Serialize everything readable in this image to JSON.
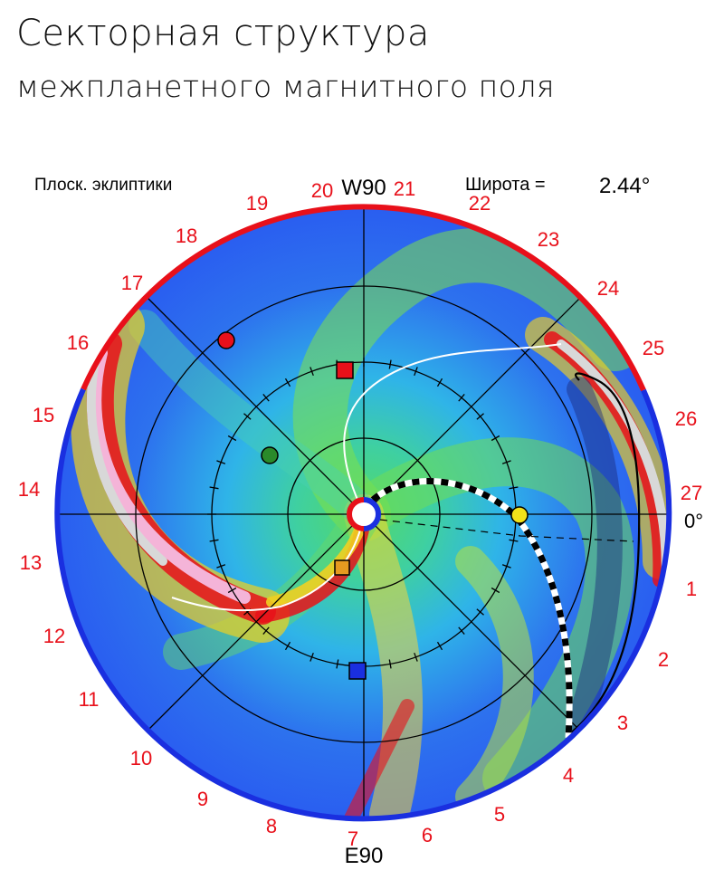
{
  "title": {
    "line1": "Секторная структура",
    "line2": "межпланетного магнитного поля"
  },
  "plot": {
    "ecliptic_label": "Плоск. эклиптики",
    "latitude_label": "Широта =",
    "latitude_value": "2.44°",
    "top_label": "W90",
    "bottom_label": "E90",
    "zero_label": "0°",
    "day_labels": [
      "1",
      "2",
      "3",
      "4",
      "5",
      "6",
      "7",
      "8",
      "9",
      "10",
      "11",
      "12",
      "13",
      "14",
      "15",
      "16",
      "17",
      "18",
      "19",
      "20",
      "21",
      "22",
      "23",
      "24",
      "25",
      "26",
      "27"
    ]
  },
  "colors": {
    "positive_sector": "#e8101a",
    "negative_sector": "#1a2fe0",
    "background_field": "#2a5ef0",
    "marker_red": "#e8101a",
    "marker_green": "#2a8a2a",
    "marker_yellow": "#f2e21a",
    "marker_orange": "#e59a20",
    "marker_blue": "#1a2fe0"
  },
  "markers": [
    {
      "name": "red-planet-marker",
      "shape": "circle",
      "color": "#e8101a"
    },
    {
      "name": "green-planet-marker",
      "shape": "circle",
      "color": "#2a8a2a"
    },
    {
      "name": "yellow-earth-marker",
      "shape": "circle",
      "color": "#f2e21a"
    },
    {
      "name": "red-spacecraft-marker",
      "shape": "square",
      "color": "#e8101a"
    },
    {
      "name": "orange-spacecraft-marker",
      "shape": "square",
      "color": "#e59a20"
    },
    {
      "name": "blue-spacecraft-marker",
      "shape": "square",
      "color": "#1a2fe0"
    }
  ]
}
